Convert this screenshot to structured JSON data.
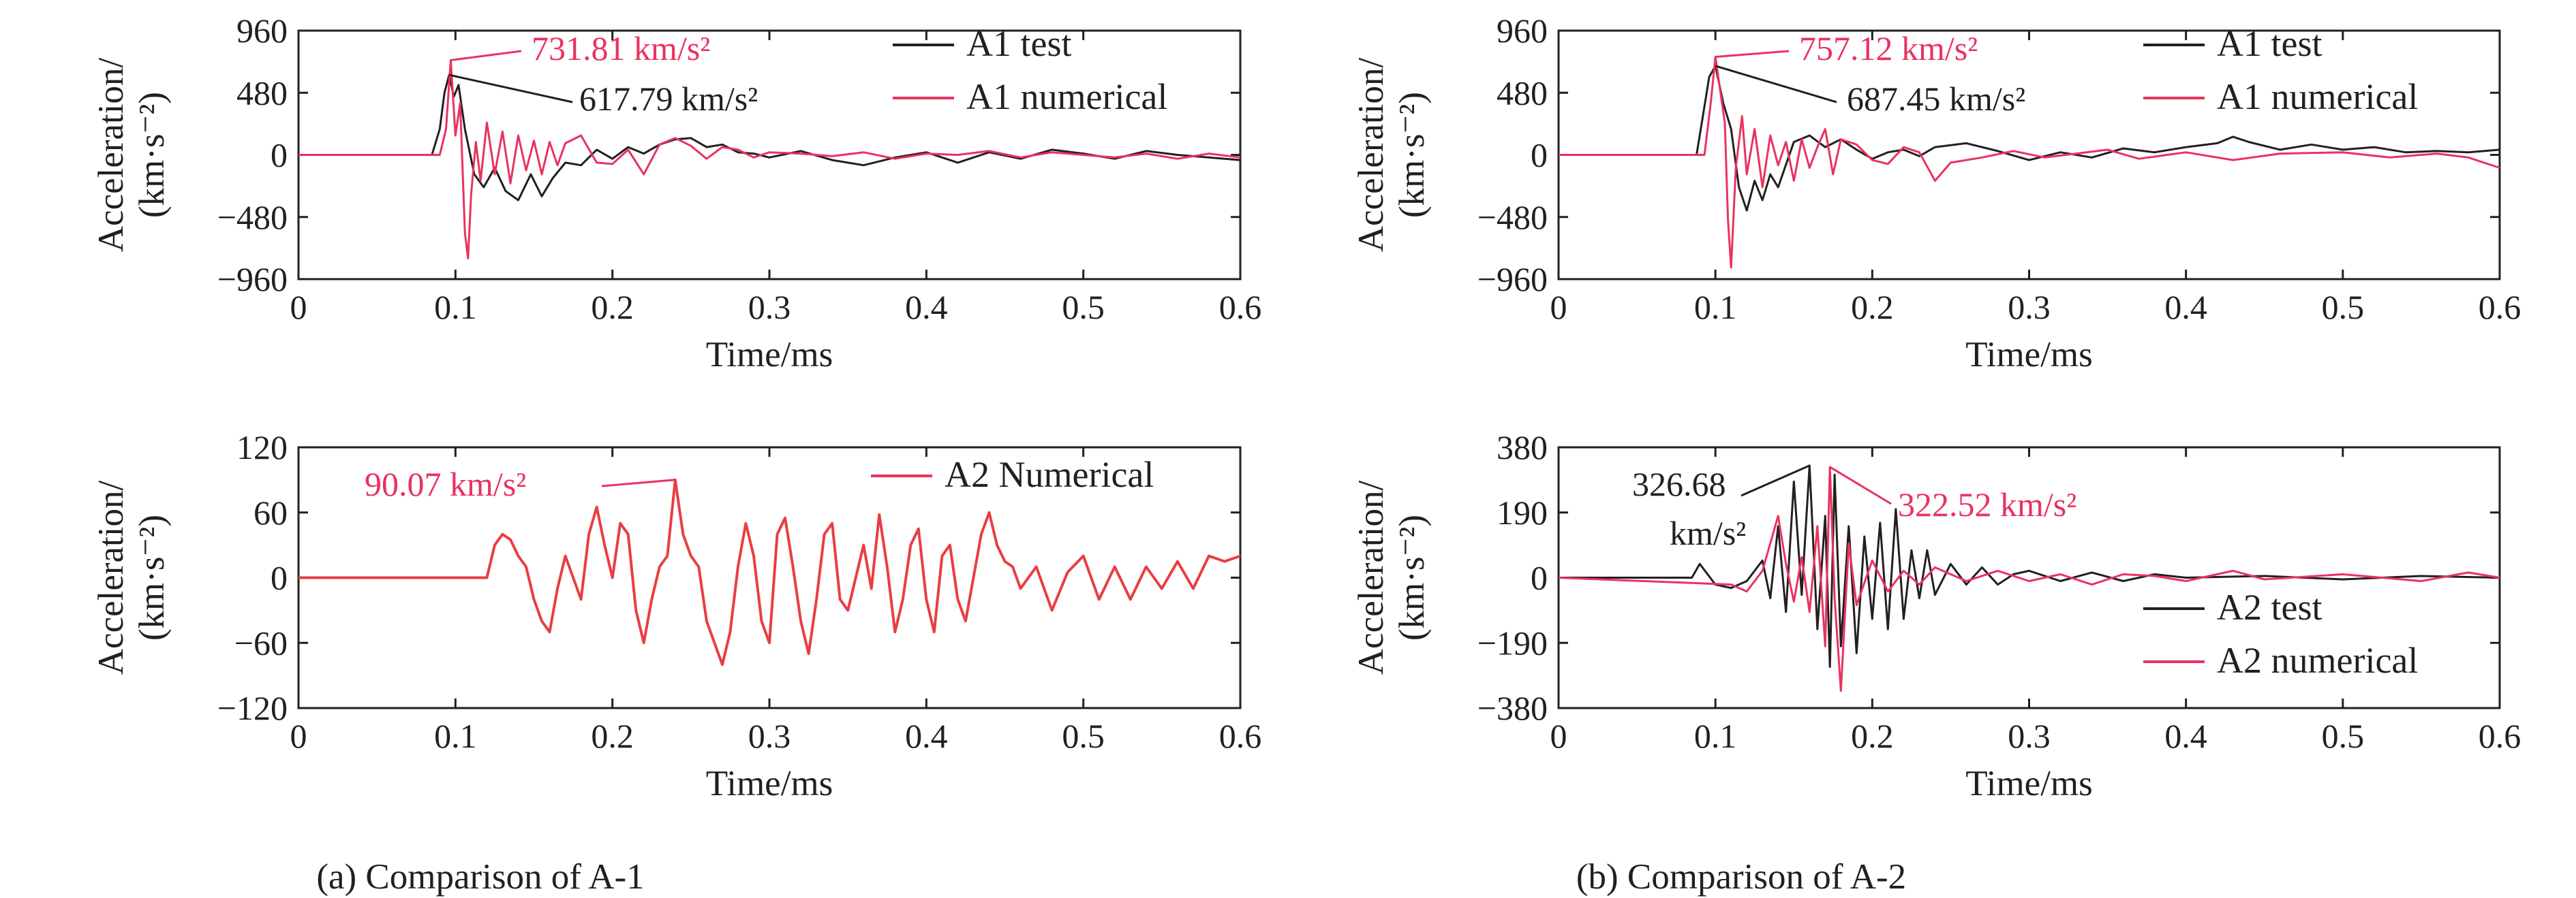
{
  "captions": {
    "a": "(a) Comparison of A-1",
    "b": "(b) Comparison of A-2"
  },
  "colors": {
    "test": "#231f20",
    "numerical": "#e8335f",
    "numerical_overlay": "#e8531f",
    "axis": "#231f20"
  },
  "chart_data": [
    {
      "id": "a-top",
      "type": "line",
      "xlabel": "Time/ms",
      "ylabel": [
        "Acceleration/",
        "(km·s⁻²)"
      ],
      "xlim": [
        0,
        0.6
      ],
      "ylim": [
        -960,
        960
      ],
      "xticks": [
        0,
        0.1,
        0.2,
        0.3,
        0.4,
        0.5,
        0.6
      ],
      "yticks": [
        -960,
        -480,
        0,
        480,
        960
      ],
      "ytick_labels": [
        "−960",
        "−480",
        "0",
        "480",
        "960"
      ],
      "legend": {
        "placement": "top-right"
      },
      "series": [
        {
          "name": "A1 test",
          "style": "test",
          "x": [
            0,
            0.085,
            0.09,
            0.093,
            0.096,
            0.099,
            0.102,
            0.106,
            0.112,
            0.118,
            0.125,
            0.132,
            0.14,
            0.148,
            0.155,
            0.162,
            0.17,
            0.18,
            0.19,
            0.2,
            0.21,
            0.22,
            0.23,
            0.24,
            0.25,
            0.26,
            0.27,
            0.28,
            0.29,
            0.3,
            0.32,
            0.34,
            0.36,
            0.38,
            0.4,
            0.42,
            0.44,
            0.46,
            0.48,
            0.5,
            0.52,
            0.54,
            0.56,
            0.58,
            0.6
          ],
          "y": [
            0,
            0,
            200,
            480,
            617.79,
            450,
            540,
            200,
            -150,
            -250,
            -100,
            -280,
            -350,
            -150,
            -320,
            -180,
            -60,
            -80,
            40,
            -30,
            60,
            10,
            80,
            120,
            130,
            60,
            80,
            20,
            10,
            -20,
            30,
            -40,
            -80,
            -20,
            20,
            -60,
            20,
            -30,
            40,
            10,
            -30,
            30,
            0,
            -20,
            -40
          ]
        },
        {
          "name": "A1 numerical",
          "style": "numerical",
          "x": [
            0,
            0.09,
            0.094,
            0.097,
            0.1,
            0.103,
            0.106,
            0.108,
            0.11,
            0.113,
            0.116,
            0.12,
            0.125,
            0.13,
            0.135,
            0.14,
            0.145,
            0.15,
            0.155,
            0.16,
            0.165,
            0.17,
            0.18,
            0.19,
            0.2,
            0.21,
            0.22,
            0.23,
            0.24,
            0.25,
            0.26,
            0.27,
            0.28,
            0.29,
            0.3,
            0.32,
            0.34,
            0.36,
            0.38,
            0.4,
            0.42,
            0.44,
            0.46,
            0.48,
            0.5,
            0.52,
            0.54,
            0.56,
            0.58,
            0.6
          ],
          "y": [
            0,
            0,
            200,
            731.81,
            150,
            400,
            -600,
            -800,
            -300,
            100,
            -200,
            250,
            -150,
            180,
            -220,
            150,
            -120,
            110,
            -150,
            100,
            -80,
            90,
            150,
            -60,
            -70,
            40,
            -150,
            80,
            130,
            70,
            -30,
            60,
            40,
            -20,
            20,
            10,
            -10,
            20,
            -30,
            10,
            0,
            30,
            -20,
            20,
            0,
            -20,
            10,
            -30,
            10,
            -20
          ]
        }
      ],
      "annotations": [
        {
          "text": "731.81 km/s²",
          "color": "numerical",
          "x": 0.097,
          "y": 731.81
        },
        {
          "text": "617.79 km/s²",
          "color": "test",
          "x": 0.096,
          "y": 617.79
        }
      ]
    },
    {
      "id": "b-top",
      "type": "line",
      "xlabel": "Time/ms",
      "ylabel": [
        "Acceleration/",
        "(km·s⁻²)"
      ],
      "xlim": [
        0,
        0.6
      ],
      "ylim": [
        -960,
        960
      ],
      "xticks": [
        0,
        0.1,
        0.2,
        0.3,
        0.4,
        0.5,
        0.6
      ],
      "yticks": [
        -960,
        -480,
        0,
        480,
        960
      ],
      "ytick_labels": [
        "−960",
        "−480",
        "0",
        "480",
        "960"
      ],
      "legend": {
        "placement": "top-right"
      },
      "series": [
        {
          "name": "A1 test",
          "style": "test",
          "x": [
            0,
            0.088,
            0.092,
            0.096,
            0.1,
            0.105,
            0.11,
            0.115,
            0.12,
            0.125,
            0.13,
            0.135,
            0.14,
            0.15,
            0.16,
            0.17,
            0.18,
            0.19,
            0.2,
            0.21,
            0.22,
            0.23,
            0.24,
            0.26,
            0.28,
            0.3,
            0.32,
            0.34,
            0.36,
            0.38,
            0.4,
            0.42,
            0.43,
            0.44,
            0.46,
            0.48,
            0.5,
            0.52,
            0.54,
            0.56,
            0.58,
            0.6
          ],
          "y": [
            0,
            0,
            300,
            600,
            687.45,
            400,
            200,
            -250,
            -430,
            -200,
            -350,
            -150,
            -250,
            100,
            150,
            60,
            120,
            40,
            -30,
            20,
            40,
            -10,
            60,
            90,
            30,
            -40,
            20,
            -20,
            50,
            20,
            60,
            90,
            140,
            100,
            40,
            80,
            40,
            60,
            20,
            30,
            20,
            40
          ]
        },
        {
          "name": "A1 numerical",
          "style": "numerical",
          "x": [
            0,
            0.093,
            0.097,
            0.1,
            0.103,
            0.106,
            0.108,
            0.11,
            0.113,
            0.117,
            0.12,
            0.125,
            0.13,
            0.135,
            0.14,
            0.145,
            0.15,
            0.155,
            0.16,
            0.165,
            0.17,
            0.175,
            0.18,
            0.19,
            0.2,
            0.21,
            0.22,
            0.23,
            0.24,
            0.25,
            0.27,
            0.29,
            0.31,
            0.33,
            0.35,
            0.37,
            0.4,
            0.43,
            0.46,
            0.5,
            0.53,
            0.56,
            0.58,
            0.6
          ],
          "y": [
            0,
            0,
            400,
            757.12,
            500,
            250,
            -500,
            -870,
            -100,
            300,
            -150,
            200,
            -250,
            150,
            -80,
            100,
            -200,
            120,
            -100,
            60,
            200,
            -150,
            120,
            80,
            -40,
            -70,
            60,
            20,
            -200,
            -60,
            -20,
            30,
            -20,
            10,
            40,
            -30,
            20,
            -40,
            10,
            20,
            -20,
            10,
            -20,
            -100
          ]
        }
      ],
      "annotations": [
        {
          "text": "757.12 km/s²",
          "color": "numerical",
          "x": 0.1,
          "y": 757.12
        },
        {
          "text": "687.45 km/s²",
          "color": "test",
          "x": 0.1,
          "y": 687.45
        }
      ]
    },
    {
      "id": "a-bottom",
      "type": "line",
      "xlabel": "Time/ms",
      "ylabel": [
        "Acceleration/",
        "(km·s⁻²)"
      ],
      "xlim": [
        0,
        0.6
      ],
      "ylim": [
        -120,
        120
      ],
      "xticks": [
        0,
        0.1,
        0.2,
        0.3,
        0.4,
        0.5,
        0.6
      ],
      "yticks": [
        -120,
        -60,
        0,
        60,
        120
      ],
      "ytick_labels": [
        "−120",
        "−60",
        "0",
        "60",
        "120"
      ],
      "legend": {
        "placement": "top-right"
      },
      "series": [
        {
          "name": "A2 Numerical",
          "style": "numerical",
          "x": [
            0,
            0.12,
            0.125,
            0.13,
            0.135,
            0.14,
            0.145,
            0.15,
            0.155,
            0.16,
            0.165,
            0.17,
            0.175,
            0.18,
            0.185,
            0.19,
            0.195,
            0.2,
            0.205,
            0.21,
            0.215,
            0.22,
            0.225,
            0.23,
            0.235,
            0.24,
            0.245,
            0.25,
            0.255,
            0.26,
            0.265,
            0.27,
            0.275,
            0.28,
            0.285,
            0.29,
            0.295,
            0.3,
            0.305,
            0.31,
            0.315,
            0.32,
            0.325,
            0.33,
            0.335,
            0.34,
            0.345,
            0.35,
            0.355,
            0.36,
            0.365,
            0.37,
            0.375,
            0.38,
            0.385,
            0.39,
            0.395,
            0.4,
            0.405,
            0.41,
            0.415,
            0.42,
            0.425,
            0.43,
            0.435,
            0.44,
            0.445,
            0.45,
            0.455,
            0.46,
            0.47,
            0.48,
            0.49,
            0.5,
            0.51,
            0.52,
            0.53,
            0.54,
            0.55,
            0.56,
            0.57,
            0.58,
            0.59,
            0.6
          ],
          "y": [
            0,
            0,
            30,
            40,
            35,
            20,
            10,
            -20,
            -40,
            -50,
            -10,
            20,
            0,
            -20,
            40,
            65,
            30,
            0,
            50,
            40,
            -30,
            -60,
            -20,
            10,
            20,
            90.07,
            40,
            20,
            10,
            -40,
            -60,
            -80,
            -50,
            10,
            50,
            20,
            -40,
            -60,
            40,
            55,
            10,
            -40,
            -70,
            -20,
            40,
            50,
            -20,
            -30,
            0,
            30,
            -10,
            58,
            10,
            -50,
            -20,
            30,
            45,
            -20,
            -50,
            20,
            30,
            -20,
            -40,
            0,
            40,
            60,
            30,
            15,
            10,
            -10,
            10,
            -30,
            5,
            20,
            -20,
            10,
            -20,
            10,
            -10,
            15,
            -10,
            20,
            15,
            20
          ]
        }
      ],
      "annotations": [
        {
          "text": "90.07 km/s²",
          "color": "numerical",
          "x": 0.24,
          "y": 90.07
        }
      ]
    },
    {
      "id": "b-bottom",
      "type": "line",
      "xlabel": "Time/ms",
      "ylabel": [
        "Acceleration/",
        "(km·s⁻²)"
      ],
      "xlim": [
        0,
        0.6
      ],
      "ylim": [
        -380,
        380
      ],
      "xticks": [
        0,
        0.1,
        0.2,
        0.3,
        0.4,
        0.5,
        0.6
      ],
      "yticks": [
        -380,
        -190,
        0,
        190,
        380
      ],
      "ytick_labels": [
        "−380",
        "−190",
        "0",
        "190",
        "380"
      ],
      "legend": {
        "placement": "bottom-right"
      },
      "series": [
        {
          "name": "A2 test",
          "style": "test",
          "x": [
            0,
            0.085,
            0.09,
            0.095,
            0.1,
            0.11,
            0.12,
            0.13,
            0.135,
            0.14,
            0.145,
            0.15,
            0.155,
            0.16,
            0.165,
            0.17,
            0.173,
            0.176,
            0.18,
            0.185,
            0.19,
            0.195,
            0.2,
            0.205,
            0.21,
            0.215,
            0.22,
            0.225,
            0.23,
            0.235,
            0.24,
            0.25,
            0.26,
            0.27,
            0.28,
            0.29,
            0.3,
            0.32,
            0.34,
            0.36,
            0.38,
            0.4,
            0.45,
            0.5,
            0.55,
            0.6
          ],
          "y": [
            0,
            0,
            40,
            10,
            -20,
            -30,
            -10,
            50,
            -60,
            150,
            -100,
            280,
            -50,
            326.68,
            -150,
            180,
            -260,
            300,
            -200,
            150,
            -220,
            120,
            -120,
            160,
            -150,
            200,
            -120,
            80,
            -60,
            80,
            -50,
            40,
            -20,
            30,
            -20,
            10,
            20,
            -10,
            15,
            -10,
            10,
            0,
            5,
            -5,
            5,
            0
          ]
        },
        {
          "name": "A2 numerical",
          "style": "numerical",
          "x": [
            0,
            0.11,
            0.12,
            0.13,
            0.14,
            0.145,
            0.15,
            0.155,
            0.16,
            0.165,
            0.17,
            0.173,
            0.176,
            0.18,
            0.185,
            0.19,
            0.2,
            0.21,
            0.22,
            0.23,
            0.24,
            0.26,
            0.28,
            0.3,
            0.32,
            0.34,
            0.36,
            0.38,
            0.4,
            0.43,
            0.45,
            0.5,
            0.55,
            0.58,
            0.6
          ],
          "y": [
            0,
            -20,
            -40,
            20,
            180,
            40,
            -70,
            60,
            -100,
            150,
            -200,
            322.52,
            -60,
            -330,
            100,
            -80,
            50,
            -40,
            20,
            -20,
            30,
            -10,
            20,
            -10,
            10,
            -20,
            10,
            5,
            -10,
            20,
            -5,
            10,
            -10,
            15,
            0
          ]
        }
      ],
      "annotations": [
        {
          "text": "326.68",
          "text2": "km/s²",
          "color": "test",
          "x": 0.16,
          "y": 326.68
        },
        {
          "text": "322.52 km/s²",
          "color": "numerical",
          "x": 0.173,
          "y": 322.52
        }
      ]
    }
  ]
}
